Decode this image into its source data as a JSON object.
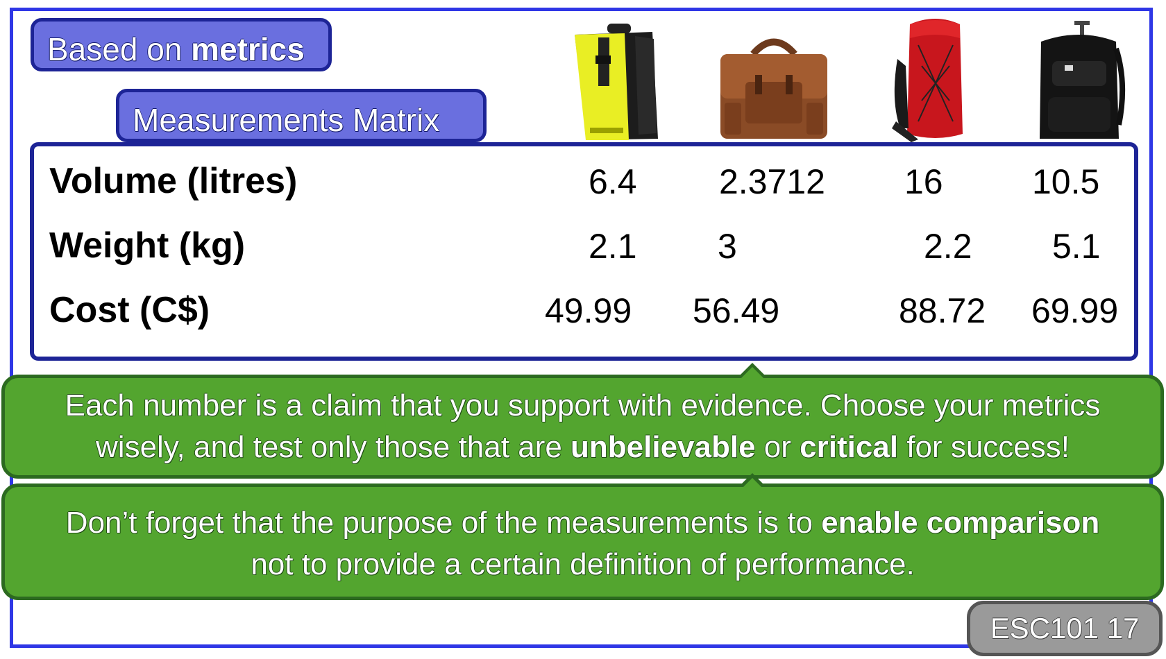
{
  "header": {
    "title_prefix": "Based on ",
    "title_bold": "metrics",
    "subtitle": "Measurements Matrix"
  },
  "products": [
    {
      "icon": "yellow-messenger-backpack-image"
    },
    {
      "icon": "brown-leather-satchel-image"
    },
    {
      "icon": "red-climbing-backpack-image"
    },
    {
      "icon": "black-rolling-backpack-image"
    }
  ],
  "matrix": {
    "rows": [
      {
        "label": "Volume (litres)",
        "values": [
          "6.4",
          "2.3712",
          "16",
          "10.5"
        ]
      },
      {
        "label": "Weight (kg)",
        "values": [
          "2.1",
          "3",
          "2.2",
          "5.1"
        ]
      },
      {
        "label": "Cost (C$)",
        "values": [
          "49.99",
          "56.49",
          "88.72",
          "69.99"
        ]
      }
    ]
  },
  "callouts": {
    "first": {
      "line1": "Each number is a claim that you support with evidence. Choose your metrics",
      "line2_a": "wisely, and test only those that are ",
      "line2_b": "unbelievable",
      "line2_c": " or ",
      "line2_d": "critical",
      "line2_e": " for success!"
    },
    "second": {
      "line1_a": "Don’t forget that the purpose of the measurements is to ",
      "line1_b": "enable comparison",
      "line2": "not to provide a certain definition of performance."
    }
  },
  "footer": {
    "label": "ESC101 17"
  },
  "colors": {
    "frame": "#2f37e6",
    "pill": "#6a6fdf",
    "callout": "#53a52f",
    "footer": "#9a9a9a"
  }
}
